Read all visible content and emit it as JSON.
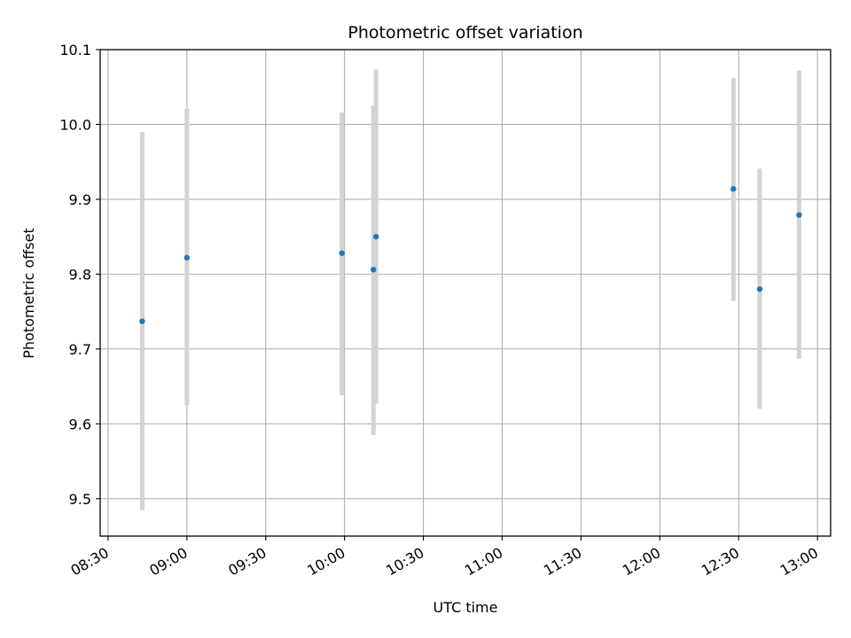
{
  "chart_data": {
    "type": "scatter",
    "title": "Photometric offset variation",
    "xlabel": "UTC time",
    "ylabel": "Photometric offset",
    "grid": true,
    "xlim": [
      "08:27",
      "13:05"
    ],
    "ylim": [
      9.45,
      10.1
    ],
    "x_ticks": [
      "08:30",
      "09:00",
      "09:30",
      "10:00",
      "10:30",
      "11:00",
      "11:30",
      "12:00",
      "12:30",
      "13:00"
    ],
    "y_ticks": [
      9.5,
      9.6,
      9.7,
      9.8,
      9.9,
      10.0,
      10.1
    ],
    "y_tick_labels": [
      "9.5",
      "9.6",
      "9.7",
      "9.8",
      "9.9",
      "10.0",
      "10.1"
    ],
    "series": [
      {
        "x": [
          "08:43",
          "09:00",
          "09:59",
          "10:11",
          "10:12",
          "12:28",
          "12:38",
          "12:53"
        ],
        "y": [
          9.737,
          9.822,
          9.828,
          9.806,
          9.85,
          9.914,
          9.78,
          9.879
        ],
        "y_err_low": [
          9.485,
          9.625,
          9.638,
          9.585,
          9.627,
          9.764,
          9.62,
          9.687
        ],
        "y_err_high": [
          9.99,
          10.021,
          10.016,
          10.025,
          10.073,
          10.062,
          9.941,
          10.072
        ],
        "color": "#1f77b4",
        "error_color": "#d3d3d3"
      }
    ]
  }
}
